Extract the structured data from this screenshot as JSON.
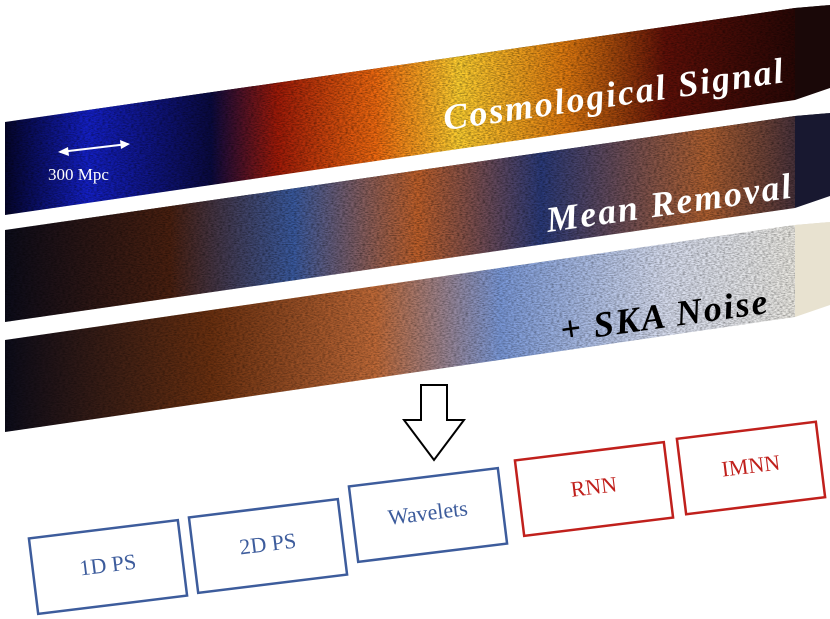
{
  "panels": [
    {
      "label": "Cosmological Signal"
    },
    {
      "label": "Mean Removal"
    },
    {
      "label": "+ SKA Noise"
    }
  ],
  "scale_label": "300 Mpc",
  "methods": [
    {
      "label": "1D PS"
    },
    {
      "label": "2D PS"
    },
    {
      "label": "Wavelets"
    },
    {
      "label": "RNN"
    },
    {
      "label": "IMNN"
    }
  ]
}
